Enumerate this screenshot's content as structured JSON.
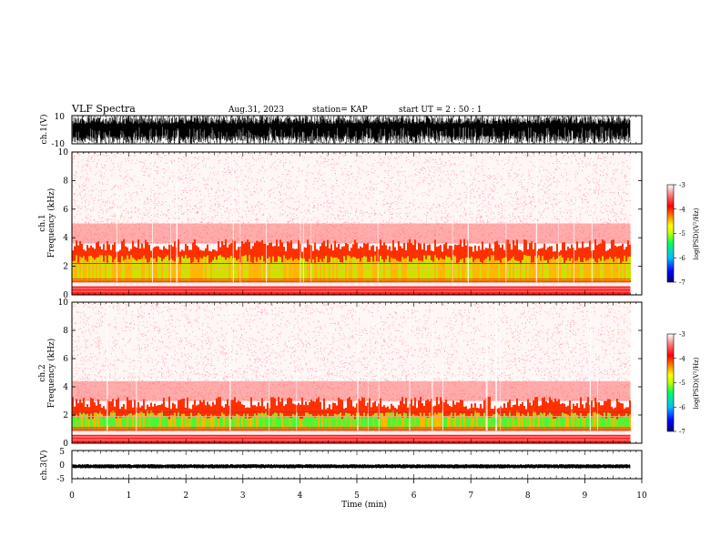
{
  "header": {
    "title": "VLF Spectra",
    "date": "Aug.31, 2023",
    "station": "station= KAP",
    "start": "start  UT =  2 : 50 : 1"
  },
  "chart_data": [
    {
      "type": "line",
      "id": "ch1-waveform",
      "ylabel": "ch.1(V)",
      "ylim": [
        -10,
        10
      ],
      "ytick_labels": [
        "-10",
        "10"
      ],
      "xlim": [
        0,
        10
      ],
      "series": [
        {
          "description_values_range_V": [
            -10,
            10
          ]
        }
      ]
    },
    {
      "type": "heatmap",
      "id": "ch1-spectrogram",
      "ylabel_line1": "ch.1",
      "ylabel_line2": "Frequency (kHz)",
      "ylim": [
        0,
        10
      ],
      "yticks": [
        "0",
        "2",
        "4",
        "6",
        "8",
        "10"
      ],
      "xlim": [
        0,
        10
      ],
      "data_extent_min": 9.8,
      "zlim": [
        -7,
        -3
      ],
      "intense_band_top_kHz": 3.6,
      "colorbar": {
        "label": "log(PSD)(V²/Hz)",
        "ticks": [
          "-3",
          "-4",
          "-5",
          "-6",
          "-7"
        ],
        "colors": [
          "#000080",
          "#0000ff",
          "#00c0ff",
          "#00ff60",
          "#c0ff00",
          "#ffff00",
          "#ff8000",
          "#ff0000",
          "#ff8080",
          "#ffffff"
        ]
      }
    },
    {
      "type": "heatmap",
      "id": "ch2-spectrogram",
      "ylabel_line1": "ch.2",
      "ylabel_line2": "Frequency (kHz)",
      "ylim": [
        0,
        10
      ],
      "yticks": [
        "0",
        "2",
        "4",
        "6",
        "8",
        "10"
      ],
      "xlim": [
        0,
        10
      ],
      "data_extent_min": 9.8,
      "zlim": [
        -7,
        -3
      ],
      "intense_band_top_kHz": 3.0,
      "colorbar": {
        "label": "log(PSD)(V²/Hz)",
        "ticks": [
          "-3",
          "-4",
          "-5",
          "-6",
          "-7"
        ],
        "colors": [
          "#000080",
          "#0000ff",
          "#00c0ff",
          "#00ff60",
          "#c0ff00",
          "#ffff00",
          "#ff8000",
          "#ff0000",
          "#ff8080",
          "#ffffff"
        ]
      }
    },
    {
      "type": "line",
      "id": "ch3-waveform",
      "ylabel": "ch.3(V)",
      "ylim": [
        -5,
        5
      ],
      "ytick_labels": [
        "5",
        "0",
        "-5"
      ],
      "xlim": [
        0,
        10
      ],
      "xlabel": "Time (min)",
      "xticks": [
        "0",
        "1",
        "2",
        "3",
        "4",
        "5",
        "6",
        "7",
        "8",
        "9",
        "10"
      ],
      "series": [
        {
          "description_values_range_V": [
            -1,
            0
          ]
        }
      ]
    }
  ]
}
